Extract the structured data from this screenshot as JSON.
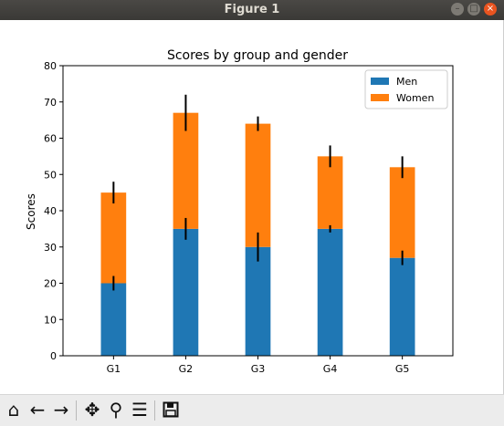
{
  "window": {
    "title": "Figure 1"
  },
  "icons": [
    "home-icon",
    "back-arrow-icon",
    "forward-arrow-icon",
    "pan-icon",
    "zoom-icon",
    "subplots-config-icon",
    "save-icon"
  ],
  "colors": {
    "men": "#1f77b4",
    "women": "#ff7f0e",
    "errorbar": "#000000"
  },
  "chart_data": {
    "type": "bar",
    "stacked": true,
    "title": "Scores by group and gender",
    "xlabel": "",
    "ylabel": "Scores",
    "categories": [
      "G1",
      "G2",
      "G3",
      "G4",
      "G5"
    ],
    "series": [
      {
        "name": "Men",
        "values": [
          20,
          35,
          30,
          35,
          27
        ],
        "errors": [
          2,
          3,
          4,
          1,
          2
        ]
      },
      {
        "name": "Women",
        "values": [
          25,
          32,
          34,
          20,
          25
        ],
        "errors": [
          3,
          5,
          2,
          3,
          3
        ]
      }
    ],
    "ylim": [
      0,
      80
    ],
    "yticks": [
      0,
      10,
      20,
      30,
      40,
      50,
      60,
      70,
      80
    ],
    "legend": {
      "position": "top-right",
      "entries": [
        "Men",
        "Women"
      ]
    },
    "grid": false
  }
}
